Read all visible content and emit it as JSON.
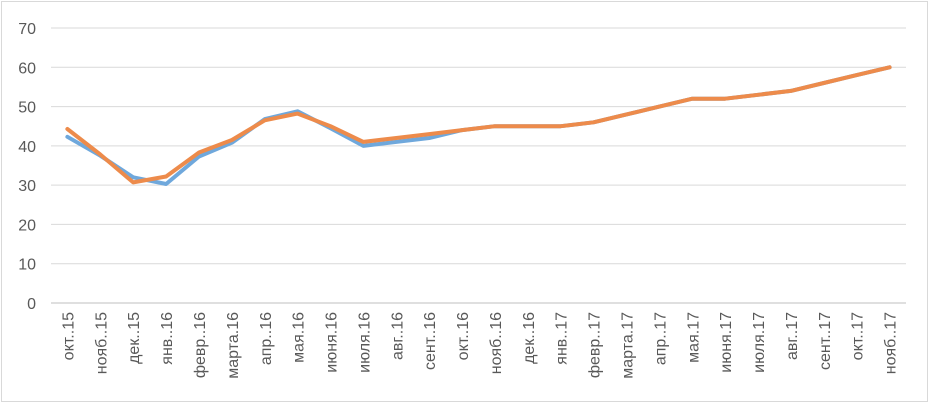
{
  "chart_data": {
    "type": "line",
    "title": "",
    "xlabel": "",
    "ylabel": "",
    "ylim": [
      0,
      70
    ],
    "yticks": [
      0,
      10,
      20,
      30,
      40,
      50,
      60,
      70
    ],
    "grid": true,
    "legend": "none",
    "categories": [
      "окт..15",
      "нояб..15",
      "дек..15",
      "янв..16",
      "февр..16",
      "марта.16",
      "апр..16",
      "мая.16",
      "июня.16",
      "июля.16",
      "авг..16",
      "сент..16",
      "окт..16",
      "нояб..16",
      "дек..16",
      "янв..17",
      "февр..17",
      "марта.17",
      "апр..17",
      "мая.17",
      "июня.17",
      "июля.17",
      "авг..17",
      "сент..17",
      "окт..17",
      "нояб..17"
    ],
    "series": [
      {
        "color": "#6fa8dc",
        "values": [
          42.3,
          37.5,
          32,
          30.3,
          37.3,
          40.8,
          46.8,
          48.8,
          44.5,
          40,
          41,
          42,
          44,
          45,
          45,
          45,
          46,
          48,
          50,
          52,
          52,
          53,
          54,
          56,
          58,
          60
        ]
      },
      {
        "color": "#ed8b4b",
        "values": [
          44.3,
          37.8,
          30.7,
          32.2,
          38.3,
          41.5,
          46.5,
          48.2,
          45,
          41,
          42,
          43,
          44,
          45,
          45,
          45,
          46,
          48,
          50,
          52,
          52,
          53,
          54,
          56,
          58,
          60
        ]
      }
    ]
  }
}
